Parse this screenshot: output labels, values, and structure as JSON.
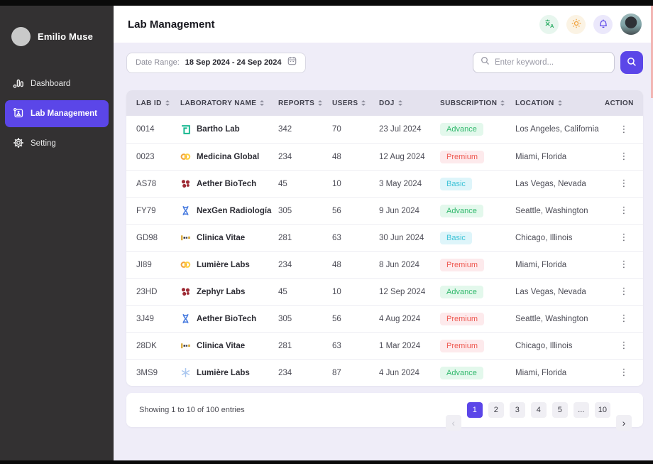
{
  "colors": {
    "accent": "#5b46e8",
    "sidebar-bg": "#333132",
    "page-bg": "#efedf8",
    "table-header-bg": "#e4e2ee",
    "advance-bg": "#e3f8ec",
    "advance-text": "#33b96e",
    "premium-bg": "#fdeaec",
    "premium-text": "#ee5a52",
    "basic-bg": "#def5fa",
    "basic-text": "#3fc3d7"
  },
  "sidebar": {
    "user_name": "Emilio Muse",
    "items": [
      {
        "label": "Dashboard",
        "icon": "bar-chart-icon",
        "active": false
      },
      {
        "label": "Lab Management",
        "icon": "flask-icon",
        "active": true
      },
      {
        "label": "Setting",
        "icon": "gear-icon",
        "active": false
      }
    ]
  },
  "header": {
    "title": "Lab Management"
  },
  "toolbar": {
    "date_range_label": "Date Range:",
    "date_range_value": "18 Sep 2024 - 24 Sep 2024",
    "search_placeholder": "Enter keyword..."
  },
  "icons": {
    "ellipsis": "⋮"
  },
  "table": {
    "columns": [
      {
        "label": "LAB ID",
        "sortable": true
      },
      {
        "label": "LABORATORY NAME",
        "sortable": true
      },
      {
        "label": "REPORTS",
        "sortable": true
      },
      {
        "label": "USERS",
        "sortable": true
      },
      {
        "label": "DOJ",
        "sortable": true
      },
      {
        "label": "SUBSCRIPTION",
        "sortable": true
      },
      {
        "label": "LOCATION",
        "sortable": true
      },
      {
        "label": "ACTION",
        "sortable": false
      }
    ],
    "rows": [
      {
        "lab_id": "0014",
        "logo": "greek-key",
        "name": "Bartho Lab",
        "reports": "342",
        "users": "70",
        "doj": "23 Jul 2024",
        "subscription": "Advance",
        "location": "Los Angeles, California"
      },
      {
        "lab_id": "0023",
        "logo": "rings",
        "name": "Medicina Global",
        "reports": "234",
        "users": "48",
        "doj": "12 Aug 2024",
        "subscription": "Premium",
        "location": "Miami, Florida"
      },
      {
        "lab_id": "AS78",
        "logo": "cluster",
        "name": "Aether BioTech",
        "reports": "45",
        "users": "10",
        "doj": "3 May 2024",
        "subscription": "Basic",
        "location": "Las Vegas, Nevada"
      },
      {
        "lab_id": "FY79",
        "logo": "dna",
        "name": "NexGen Radiología",
        "reports": "305",
        "users": "56",
        "doj": "9 Jun 2024",
        "subscription": "Advance",
        "location": "Seattle, Washington"
      },
      {
        "lab_id": "GD98",
        "logo": "wordmark",
        "name": "Clinica Vitae",
        "reports": "281",
        "users": "63",
        "doj": "30 Jun 2024",
        "subscription": "Basic",
        "location": "Chicago, Illinois"
      },
      {
        "lab_id": "JI89",
        "logo": "rings",
        "name": "Lumière Labs",
        "reports": "234",
        "users": "48",
        "doj": "8 Jun 2024",
        "subscription": "Premium",
        "location": "Miami, Florida"
      },
      {
        "lab_id": "23HD",
        "logo": "cluster",
        "name": "Zephyr Labs",
        "reports": "45",
        "users": "10",
        "doj": "12 Sep 2024",
        "subscription": "Advance",
        "location": "Las Vegas, Nevada"
      },
      {
        "lab_id": "3J49",
        "logo": "dna",
        "name": "Aether BioTech",
        "reports": "305",
        "users": "56",
        "doj": "4 Aug 2024",
        "subscription": "Premium",
        "location": "Seattle, Washington"
      },
      {
        "lab_id": "28DK",
        "logo": "wordmark",
        "name": "Clinica Vitae",
        "reports": "281",
        "users": "63",
        "doj": "1 Mar 2024",
        "subscription": "Premium",
        "location": "Chicago, Illinois"
      },
      {
        "lab_id": "3MS9",
        "logo": "snowflake",
        "name": "Lumière Labs",
        "reports": "234",
        "users": "87",
        "doj": "4 Jun 2024",
        "subscription": "Advance",
        "location": "Miami, Florida"
      }
    ]
  },
  "footer": {
    "summary": "Showing 1 to 10 of 100 entries",
    "prev_icon": "‹",
    "next_icon": "›",
    "pages": [
      "1",
      "2",
      "3",
      "4",
      "5",
      "...",
      "10"
    ],
    "active_page": "1"
  }
}
